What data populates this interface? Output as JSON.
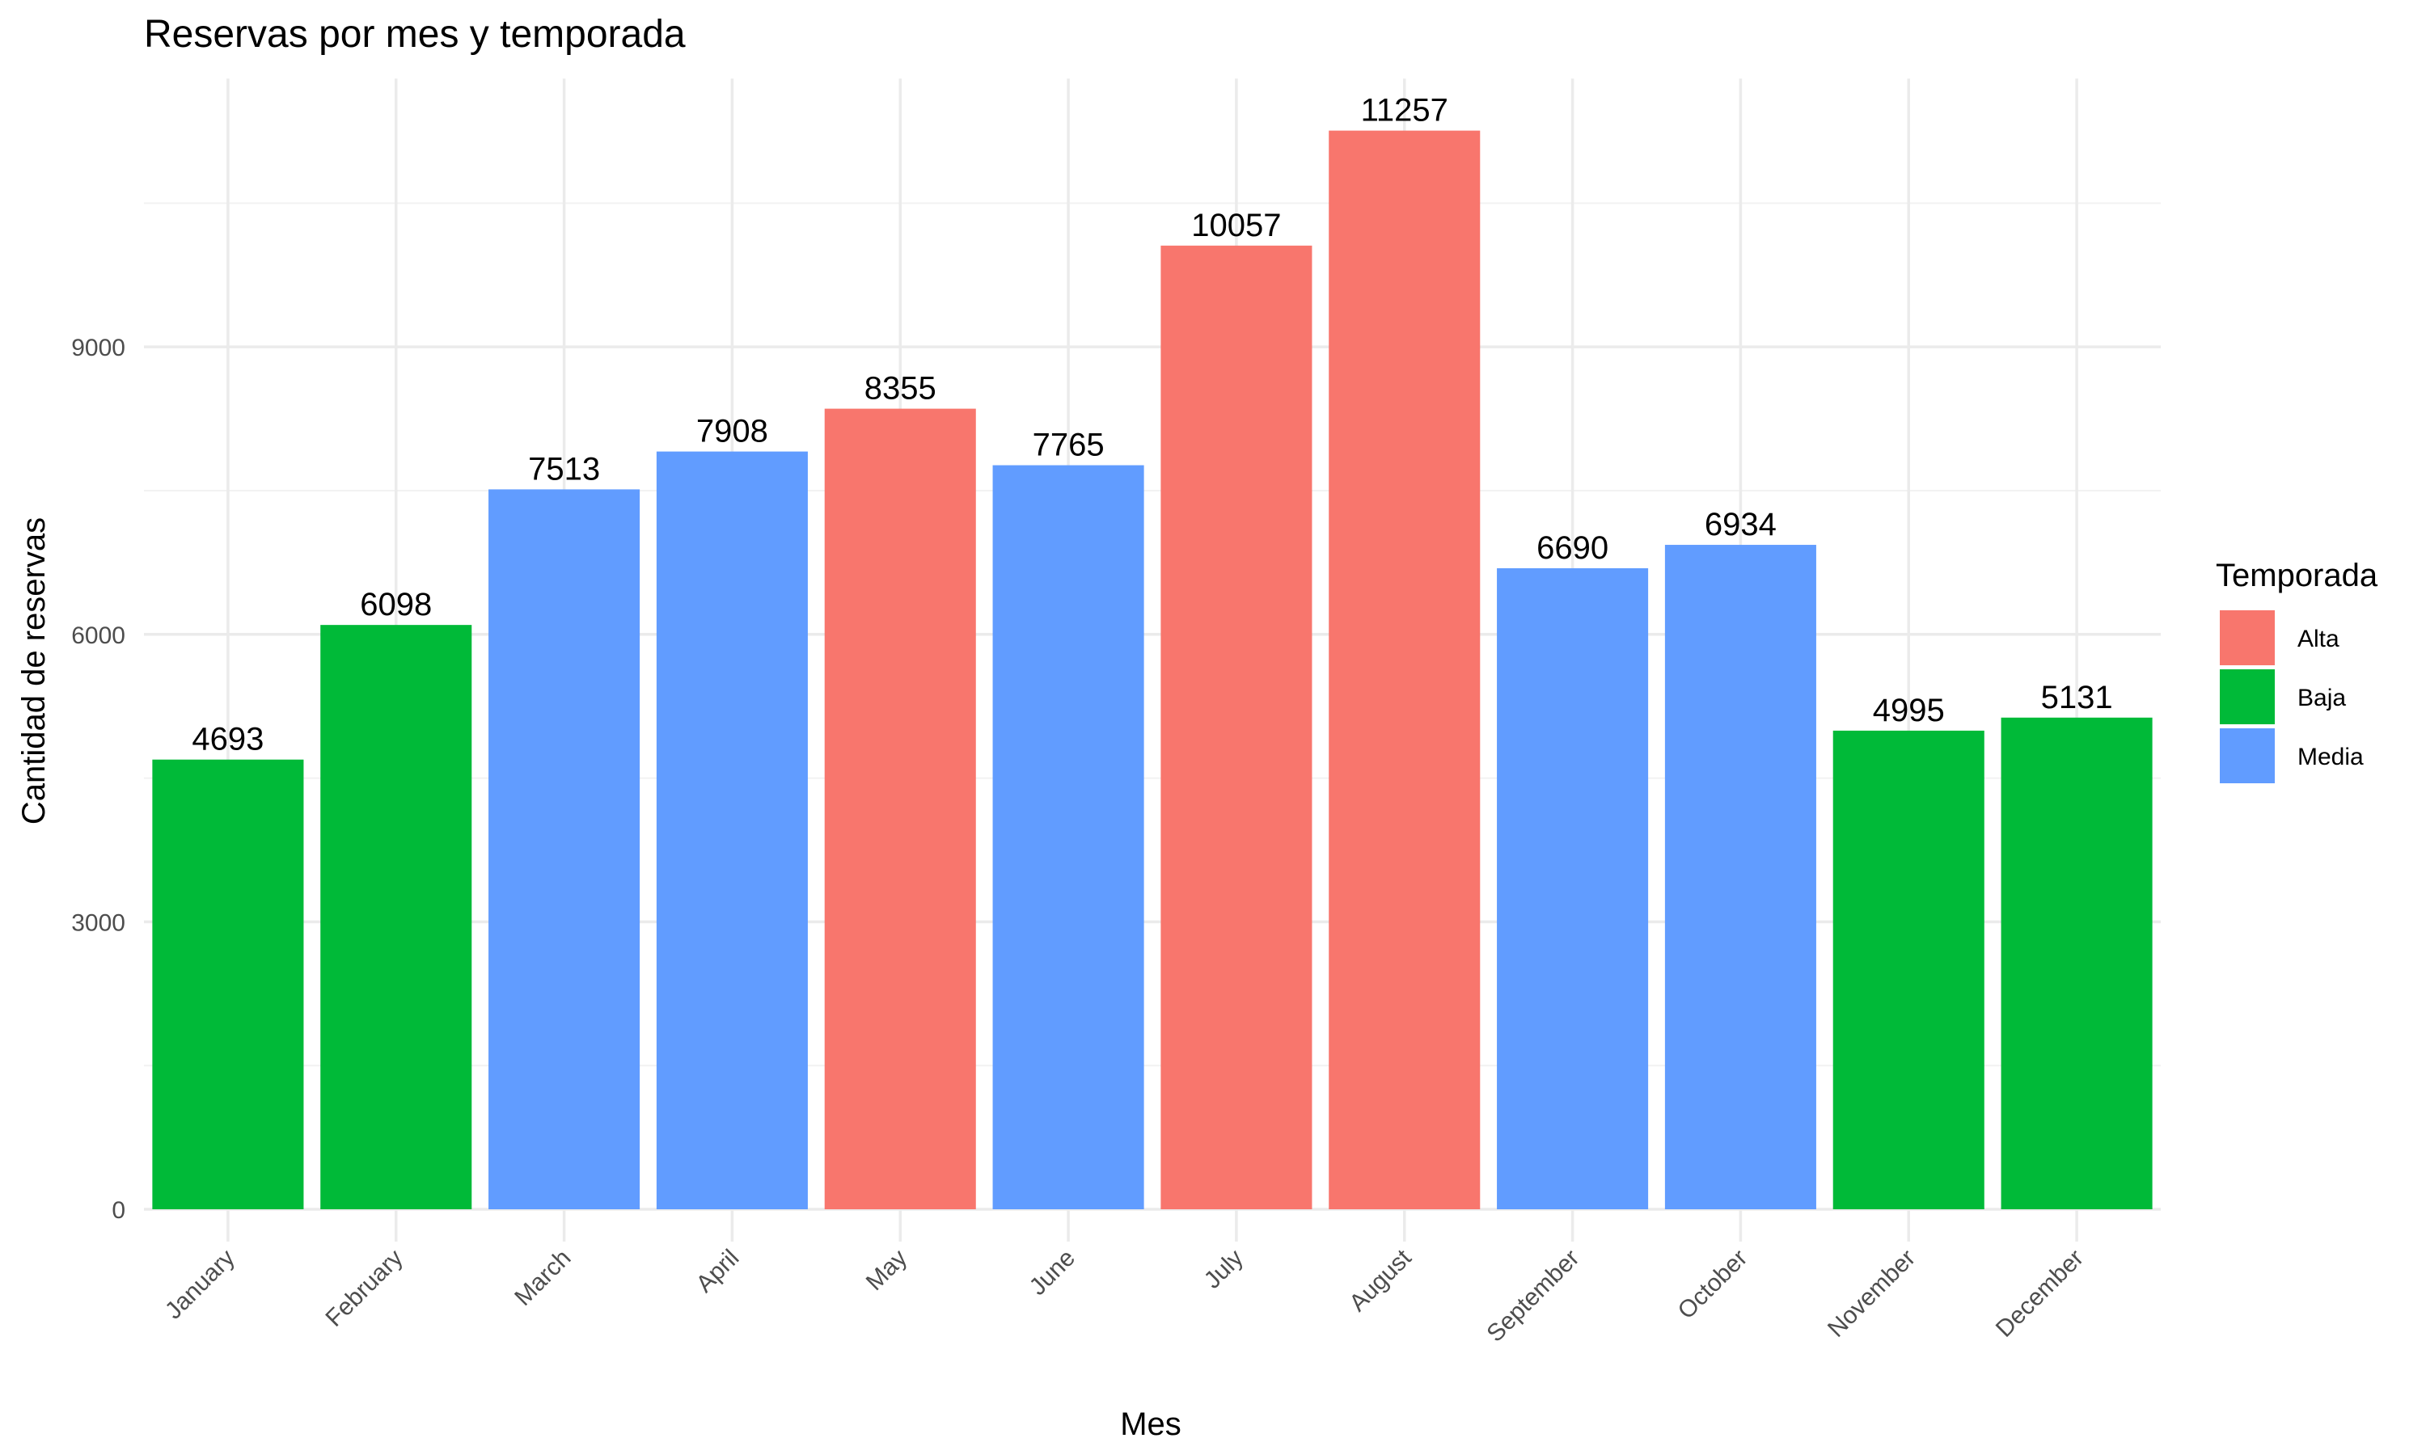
{
  "chart_data": {
    "type": "bar",
    "title": "Reservas por mes y temporada",
    "xlabel": "Mes",
    "ylabel": "Cantidad de reservas",
    "ylim": [
      0,
      11800
    ],
    "yticks": [
      0,
      3000,
      6000,
      9000
    ],
    "yticklabels": [
      "0",
      "3000",
      "6000",
      "9000"
    ],
    "grid": true,
    "legend": {
      "title": "Temporada",
      "position": "right",
      "entries": [
        {
          "label": "Alta",
          "color": "#F8766D"
        },
        {
          "label": "Baja",
          "color": "#00BA38"
        },
        {
          "label": "Media",
          "color": "#619CFF"
        }
      ]
    },
    "categories": [
      "January",
      "February",
      "March",
      "April",
      "May",
      "June",
      "July",
      "August",
      "September",
      "October",
      "November",
      "December"
    ],
    "values": [
      4693,
      6098,
      7513,
      7908,
      8355,
      7765,
      10057,
      11257,
      6690,
      6934,
      4995,
      5131
    ],
    "value_labels": [
      "4693",
      "6098",
      "7513",
      "7908",
      "8355",
      "7765",
      "10057",
      "11257",
      "6690",
      "6934",
      "4995",
      "5131"
    ],
    "season": [
      "Baja",
      "Baja",
      "Media",
      "Media",
      "Alta",
      "Media",
      "Alta",
      "Alta",
      "Media",
      "Media",
      "Baja",
      "Baja"
    ]
  }
}
